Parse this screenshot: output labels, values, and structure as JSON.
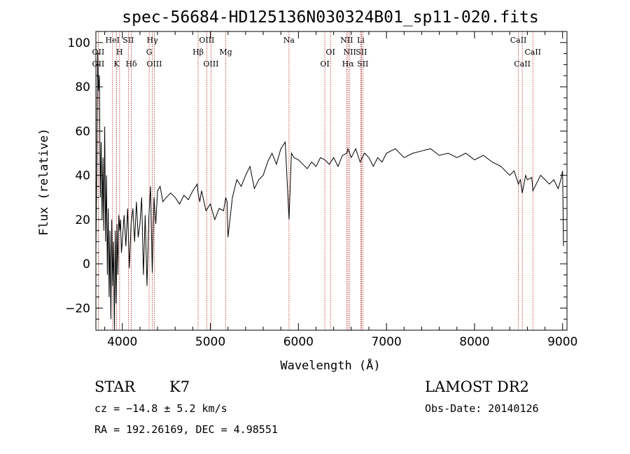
{
  "chart_data": {
    "type": "line",
    "title": "spec-56684-HD125136N030324B01_sp11-020.fits",
    "xlabel": "Wavelength (Å)",
    "ylabel": "Flux (relative)",
    "xlim": [
      3700,
      9050
    ],
    "ylim": [
      -30,
      105
    ],
    "x_ticks": [
      4000,
      5000,
      6000,
      7000,
      8000,
      9000
    ],
    "y_ticks": [
      -20,
      0,
      20,
      40,
      60,
      80,
      100
    ],
    "grid": false,
    "series": [
      {
        "x": [
          3700,
          3710,
          3720,
          3730,
          3740,
          3750,
          3760,
          3770,
          3780,
          3790,
          3800,
          3810,
          3820,
          3830,
          3840,
          3850,
          3860,
          3870,
          3880,
          3890,
          3900,
          3910,
          3920,
          3930,
          3940,
          3950,
          3960,
          3970,
          3980,
          3990,
          4000,
          4020,
          4040,
          4060,
          4080,
          4100,
          4120,
          4140,
          4160,
          4180,
          4200,
          4220,
          4240,
          4260,
          4280,
          4300,
          4320,
          4340,
          4360,
          4380,
          4400,
          4430,
          4460,
          4500,
          4550,
          4600,
          4650,
          4700,
          4750,
          4800,
          4850,
          4861,
          4880,
          4900,
          4950,
          5000,
          5050,
          5100,
          5150,
          5175,
          5190,
          5200,
          5250,
          5300,
          5350,
          5400,
          5450,
          5500,
          5550,
          5600,
          5650,
          5700,
          5750,
          5800,
          5850,
          5893,
          5920,
          5950,
          6000,
          6050,
          6100,
          6150,
          6200,
          6250,
          6300,
          6350,
          6400,
          6450,
          6500,
          6550,
          6563,
          6600,
          6650,
          6700,
          6750,
          6800,
          6850,
          6900,
          6950,
          7000,
          7100,
          7200,
          7300,
          7400,
          7500,
          7600,
          7700,
          7800,
          7900,
          8000,
          8100,
          8200,
          8300,
          8400,
          8450,
          8498,
          8520,
          8542,
          8580,
          8600,
          8650,
          8662,
          8700,
          8750,
          8800,
          8850,
          8900,
          8950,
          8980,
          9000,
          9010
        ],
        "y": [
          5,
          45,
          95,
          78,
          85,
          30,
          55,
          20,
          48,
          15,
          62,
          10,
          40,
          -5,
          25,
          -15,
          15,
          -25,
          20,
          -10,
          10,
          -30,
          15,
          -18,
          18,
          -5,
          22,
          15,
          20,
          5,
          10,
          22,
          8,
          25,
          -2,
          18,
          25,
          10,
          28,
          12,
          18,
          30,
          -5,
          22,
          -10,
          20,
          35,
          -4,
          30,
          18,
          33,
          35,
          28,
          30,
          32,
          30,
          27,
          31,
          29,
          33,
          36,
          32,
          28,
          33,
          24,
          27,
          20,
          25,
          24,
          30,
          28,
          12,
          30,
          38,
          35,
          40,
          44,
          34,
          38,
          40,
          46,
          50,
          45,
          52,
          55,
          20,
          50,
          48,
          47,
          45,
          43,
          46,
          44,
          48,
          47,
          45,
          48,
          44,
          49,
          50,
          52,
          48,
          52,
          46,
          50,
          48,
          44,
          48,
          46,
          50,
          52,
          48,
          50,
          51,
          52,
          49,
          50,
          48,
          50,
          47,
          49,
          46,
          44,
          40,
          42,
          36,
          38,
          32,
          40,
          38,
          39,
          33,
          36,
          40,
          38,
          36,
          38,
          34,
          38,
          42,
          8
        ]
      }
    ],
    "line_markers": [
      {
        "label": "OII",
        "wave": 3727,
        "row": 2
      },
      {
        "label": "OII",
        "wave": 3727,
        "row": 3
      },
      {
        "label": "HeI",
        "wave": 3889,
        "row": 1
      },
      {
        "label": "H",
        "wave": 3969,
        "row": 2
      },
      {
        "label": "K",
        "wave": 3934,
        "row": 3
      },
      {
        "label": "SII",
        "wave": 4069,
        "row": 1
      },
      {
        "label": "Hδ",
        "wave": 4102,
        "row": 3
      },
      {
        "label": "Hγ",
        "wave": 4341,
        "row": 1
      },
      {
        "label": "G",
        "wave": 4305,
        "row": 2
      },
      {
        "label": "OIII",
        "wave": 4363,
        "row": 3
      },
      {
        "label": "Hβ",
        "wave": 4861,
        "row": 2
      },
      {
        "label": "OIII",
        "wave": 4959,
        "row": 1
      },
      {
        "label": "OIII",
        "wave": 5007,
        "row": 3
      },
      {
        "label": "Mg",
        "wave": 5175,
        "row": 2
      },
      {
        "label": "Na",
        "wave": 5893,
        "row": 1
      },
      {
        "label": "OI",
        "wave": 6300,
        "row": 3
      },
      {
        "label": "OI",
        "wave": 6364,
        "row": 2
      },
      {
        "label": "NII",
        "wave": 6548,
        "row": 1
      },
      {
        "label": "NII",
        "wave": 6583,
        "row": 2
      },
      {
        "label": "Hα",
        "wave": 6563,
        "row": 3
      },
      {
        "label": "Li",
        "wave": 6708,
        "row": 1
      },
      {
        "label": "SII",
        "wave": 6716,
        "row": 2
      },
      {
        "label": "SII",
        "wave": 6731,
        "row": 3
      },
      {
        "label": "CaII",
        "wave": 8498,
        "row": 1
      },
      {
        "label": "CaII",
        "wave": 8542,
        "row": 3
      },
      {
        "label": "CaII",
        "wave": 8662,
        "row": 2
      }
    ],
    "marker_color": "#b22222"
  },
  "info": {
    "object_class": "STAR",
    "subclass": "K7",
    "survey": "LAMOST DR2",
    "redshift": "cz = −14.8 ± 5.2 km/s",
    "obs_date": "Obs-Date: 20140126",
    "coords": "RA = 192.26169, DEC =   4.98551"
  }
}
